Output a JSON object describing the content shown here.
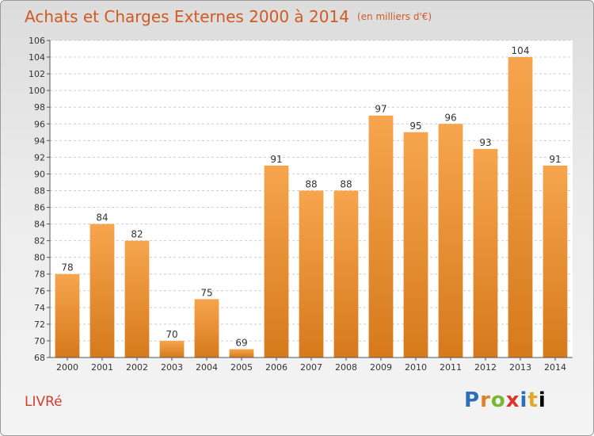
{
  "header": {
    "title": "Achats et Charges Externes 2000 à 2014",
    "unit": "(en milliers d'€)"
  },
  "footer": {
    "city": "LIVRé",
    "brand": "Proxiti"
  },
  "colors": {
    "title": "#cf5a23",
    "bar_top": "#f6a54e",
    "bar_bottom": "#d67a1c",
    "city": "#d33c2c"
  },
  "chart_data": {
    "type": "bar",
    "title": "Achats et Charges Externes 2000 à 2014",
    "xlabel": "",
    "ylabel": "",
    "categories": [
      "2000",
      "2001",
      "2002",
      "2003",
      "2004",
      "2005",
      "2006",
      "2007",
      "2008",
      "2009",
      "2010",
      "2011",
      "2012",
      "2013",
      "2014"
    ],
    "values": [
      78,
      84,
      82,
      70,
      75,
      69,
      91,
      88,
      88,
      97,
      95,
      96,
      93,
      104,
      91
    ],
    "ylim": [
      68,
      106
    ],
    "yticks": [
      68,
      70,
      72,
      74,
      76,
      78,
      80,
      82,
      84,
      86,
      88,
      90,
      92,
      94,
      96,
      98,
      100,
      102,
      104,
      106
    ],
    "grid": true,
    "legend": "none"
  }
}
